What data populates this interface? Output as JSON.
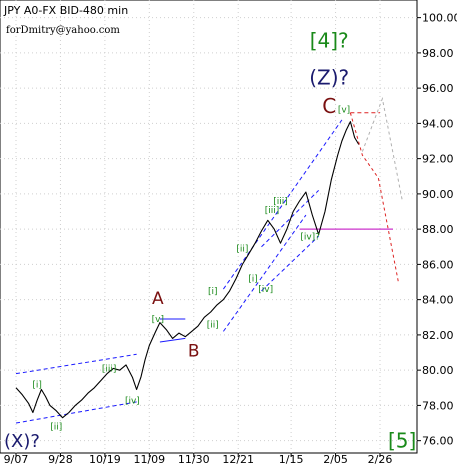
{
  "header": {
    "title": "JPY A0-FX BID-480 min",
    "author": "forDmitry@yahoo.com"
  },
  "colors": {
    "price": "#000000",
    "channel": "#1a1aff",
    "label_green": "#1a8a1a",
    "label_dark": "#7a1010",
    "label_navy": "#1a1a6e",
    "target_red": "#dd2222",
    "alt_gray": "#b0b0b0",
    "support_magenta": "#cc33cc",
    "grid": "#cfcfcf"
  },
  "chart_data": {
    "type": "line",
    "title": "JPY A0-FX BID-480 min",
    "xlabel": "",
    "ylabel": "",
    "ylim": [
      75.3,
      101.0
    ],
    "yticks": [
      "76.00",
      "78.00",
      "80.00",
      "82.00",
      "84.00",
      "86.00",
      "88.00",
      "90.00",
      "92.00",
      "94.00",
      "96.00",
      "98.00",
      "100.00"
    ],
    "xticks": [
      "9/07",
      "9/28",
      "10/19",
      "11/09",
      "11/30",
      "12/21",
      "1/15",
      "2/05",
      "2/26"
    ],
    "grid": true,
    "series": [
      {
        "points": [
          [
            "9/07",
            79.0
          ],
          [
            "9/10",
            78.6
          ],
          [
            "9/13",
            78.1
          ],
          [
            "9/15",
            77.6
          ],
          [
            "9/17",
            78.3
          ],
          [
            "9/19",
            78.9
          ],
          [
            "9/21",
            78.5
          ],
          [
            "9/23",
            78.0
          ],
          [
            "9/26",
            77.7
          ],
          [
            "9/29",
            77.3
          ],
          [
            "10/02",
            77.6
          ],
          [
            "10/05",
            78.0
          ],
          [
            "10/08",
            78.3
          ],
          [
            "10/11",
            78.7
          ],
          [
            "10/14",
            79.0
          ],
          [
            "10/17",
            79.4
          ],
          [
            "10/20",
            79.8
          ],
          [
            "10/23",
            80.1
          ],
          [
            "10/26",
            80.0
          ],
          [
            "10/29",
            80.3
          ],
          [
            "11/01",
            79.6
          ],
          [
            "11/03",
            78.9
          ],
          [
            "11/05",
            79.6
          ],
          [
            "11/07",
            80.6
          ],
          [
            "11/09",
            81.4
          ],
          [
            "11/12",
            82.2
          ],
          [
            "11/14",
            82.7
          ],
          [
            "11/17",
            82.3
          ],
          [
            "11/20",
            81.8
          ],
          [
            "11/23",
            82.1
          ],
          [
            "11/26",
            81.9
          ],
          [
            "11/29",
            82.2
          ],
          [
            "12/02",
            82.5
          ],
          [
            "12/05",
            83.0
          ],
          [
            "12/08",
            83.3
          ],
          [
            "12/11",
            83.7
          ],
          [
            "12/14",
            84.0
          ],
          [
            "12/17",
            84.5
          ],
          [
            "12/20",
            85.2
          ],
          [
            "12/23",
            86.0
          ],
          [
            "12/26",
            86.6
          ],
          [
            "12/29",
            87.2
          ],
          [
            "1/01",
            87.9
          ],
          [
            "1/04",
            88.5
          ],
          [
            "1/07",
            88.0
          ],
          [
            "1/10",
            87.2
          ],
          [
            "1/13",
            88.0
          ],
          [
            "1/16",
            89.0
          ],
          [
            "1/19",
            89.6
          ],
          [
            "1/22",
            90.1
          ],
          [
            "1/25",
            88.8
          ],
          [
            "1/28",
            87.7
          ],
          [
            "1/31",
            89.0
          ],
          [
            "2/03",
            90.8
          ],
          [
            "2/06",
            92.2
          ],
          [
            "2/08",
            93.0
          ],
          [
            "2/10",
            93.6
          ],
          [
            "2/12",
            94.1
          ],
          [
            "2/14",
            93.2
          ],
          [
            "2/16",
            92.8
          ]
        ]
      }
    ],
    "annotations": [
      "[4]?",
      "(Z)?",
      "C",
      "[v]",
      "A",
      "B",
      "[iii]",
      "[v]",
      "[ii]",
      "[i]",
      "[iv]?",
      "[iv]",
      "[i]",
      "[ii]",
      "[iii]",
      "[iv]",
      "[ii]",
      "[i]",
      "[iii]",
      "(X)?",
      "[5]"
    ],
    "levels": [
      {
        "kind": "support",
        "value": 88.0
      },
      {
        "kind": "target",
        "value": 94.6
      }
    ],
    "targets": [
      {
        "kind": "red_dashed",
        "from": 94.6,
        "to_a": 92.2,
        "to_b": 85.0
      },
      {
        "kind": "gray_dashed",
        "from": 92.4,
        "peak": 95.4,
        "to": 89.6
      }
    ]
  }
}
